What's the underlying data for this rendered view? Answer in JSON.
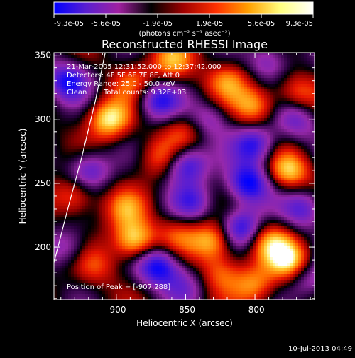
{
  "colorbar": {
    "tick_labels": [
      "-9.3e-05",
      "-5.6e-05",
      "-1.9e-05",
      "1.9e-05",
      "5.6e-05",
      "9.3e-05"
    ],
    "unit_label": "(photons cm⁻² s⁻¹ asec⁻²)",
    "range": [
      -9.3e-05,
      9.3e-05
    ],
    "colors": [
      "#0000ff",
      "#5a1fd0",
      "#a020a0",
      "#000000",
      "#a00000",
      "#ff3000",
      "#ffa000",
      "#ffff80",
      "#ffffff"
    ]
  },
  "info": {
    "time_range": "21-Mar-2005 12:31:52.000 to 12:37:42.000",
    "detectors": "Detectors: 4F 5F 6F 7F 8F, Att 0",
    "energy_range": "Energy Range: 25.0 - 50.0 keV",
    "method": "Clean",
    "total_counts": "Total counts: 9.32E+03",
    "peak_position": "Position of Peak = [-907,288]"
  },
  "footer": {
    "timestamp": "10-Jul-2013 04:49"
  },
  "chart_data": {
    "type": "heatmap",
    "title": "Reconstructed RHESSI Image",
    "xlabel": "Heliocentric X (arcsec)",
    "ylabel": "Heliocentric Y (arcsec)",
    "xlim": [
      -945,
      -757
    ],
    "ylim": [
      159,
      352
    ],
    "x_ticks": [
      -900,
      -850,
      -800
    ],
    "y_ticks": [
      200,
      250,
      300,
      350
    ],
    "x_tick_labels": [
      "-900",
      "-850",
      "-800"
    ],
    "y_tick_labels": [
      "200",
      "250",
      "300",
      "350"
    ],
    "peak": {
      "x": -907,
      "y": 288
    },
    "blobs": [
      {
        "x": -935,
        "y": 330,
        "v": -0.9
      },
      {
        "x": -905,
        "y": 300,
        "v": 0.9
      },
      {
        "x": -888,
        "y": 330,
        "v": 0.5
      },
      {
        "x": -870,
        "y": 315,
        "v": -0.8
      },
      {
        "x": -851,
        "y": 290,
        "v": 0.4
      },
      {
        "x": -850,
        "y": 265,
        "v": -0.9
      },
      {
        "x": -820,
        "y": 330,
        "v": 0.6
      },
      {
        "x": -800,
        "y": 310,
        "v": 0.7
      },
      {
        "x": -800,
        "y": 280,
        "v": -0.85
      },
      {
        "x": -805,
        "y": 250,
        "v": -1.0
      },
      {
        "x": -770,
        "y": 320,
        "v": 0.5
      },
      {
        "x": -775,
        "y": 260,
        "v": 0.8
      },
      {
        "x": -770,
        "y": 300,
        "v": -0.6
      },
      {
        "x": -930,
        "y": 240,
        "v": 0.6
      },
      {
        "x": -920,
        "y": 260,
        "v": -0.7
      },
      {
        "x": -893,
        "y": 230,
        "v": 0.5
      },
      {
        "x": -887,
        "y": 205,
        "v": 0.95
      },
      {
        "x": -870,
        "y": 185,
        "v": -1.0
      },
      {
        "x": -855,
        "y": 210,
        "v": 0.4
      },
      {
        "x": -845,
        "y": 235,
        "v": -0.6
      },
      {
        "x": -830,
        "y": 205,
        "v": 0.8
      },
      {
        "x": -825,
        "y": 180,
        "v": 0.5
      },
      {
        "x": -810,
        "y": 215,
        "v": -0.9
      },
      {
        "x": -790,
        "y": 205,
        "v": 0.6
      },
      {
        "x": -775,
        "y": 190,
        "v": 0.9
      },
      {
        "x": -765,
        "y": 230,
        "v": -0.7
      },
      {
        "x": -915,
        "y": 185,
        "v": 0.4
      },
      {
        "x": -935,
        "y": 200,
        "v": -0.5
      },
      {
        "x": -800,
        "y": 170,
        "v": 0.6
      },
      {
        "x": -760,
        "y": 175,
        "v": -0.5
      },
      {
        "x": -850,
        "y": 170,
        "v": -0.4
      },
      {
        "x": -868,
        "y": 270,
        "v": 0.5
      },
      {
        "x": -833,
        "y": 300,
        "v": -0.5
      },
      {
        "x": -790,
        "y": 345,
        "v": -0.6
      },
      {
        "x": -860,
        "y": 345,
        "v": 0.6
      }
    ],
    "limb_curve": {
      "x": [
        -945,
        -935,
        -925,
        -915,
        -908
      ],
      "y": [
        188,
        230,
        270,
        315,
        352
      ]
    }
  }
}
